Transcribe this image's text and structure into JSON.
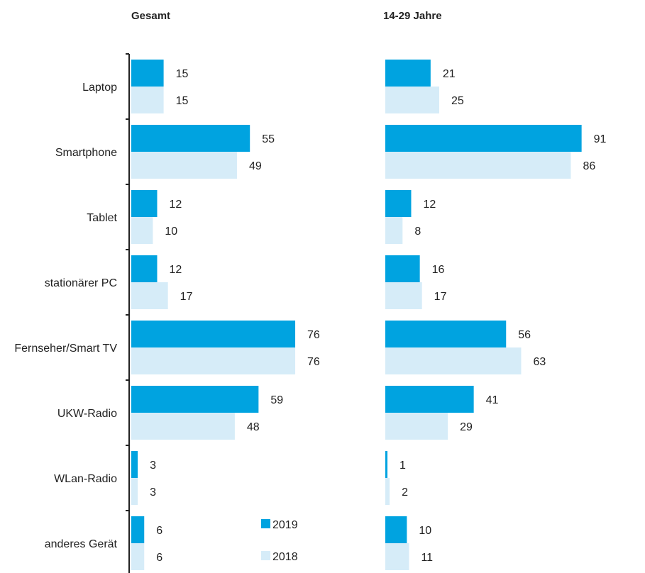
{
  "chart_data": {
    "type": "bar",
    "orientation": "horizontal",
    "categories": [
      "Laptop",
      "Smartphone",
      "Tablet",
      "stationärer PC",
      "Fernseher/Smart TV",
      "UKW-Radio",
      "WLan-Radio",
      "anderes Gerät"
    ],
    "colors": {
      "2019": "#00a3e0",
      "2018": "#d6ecf8"
    },
    "panels": [
      {
        "title": "Gesamt",
        "series": [
          {
            "name": "2019",
            "values": [
              15,
              55,
              12,
              12,
              76,
              59,
              3,
              6
            ]
          },
          {
            "name": "2018",
            "values": [
              15,
              49,
              10,
              17,
              76,
              48,
              3,
              6
            ]
          }
        ]
      },
      {
        "title": "14-29 Jahre",
        "series": [
          {
            "name": "2019",
            "values": [
              21,
              91,
              12,
              16,
              56,
              41,
              1,
              10
            ]
          },
          {
            "name": "2018",
            "values": [
              25,
              86,
              8,
              17,
              63,
              29,
              2,
              11
            ]
          }
        ]
      }
    ],
    "legend": [
      "2019",
      "2018"
    ],
    "legend_position": "inside bottom-right of first panel",
    "grid": false
  }
}
